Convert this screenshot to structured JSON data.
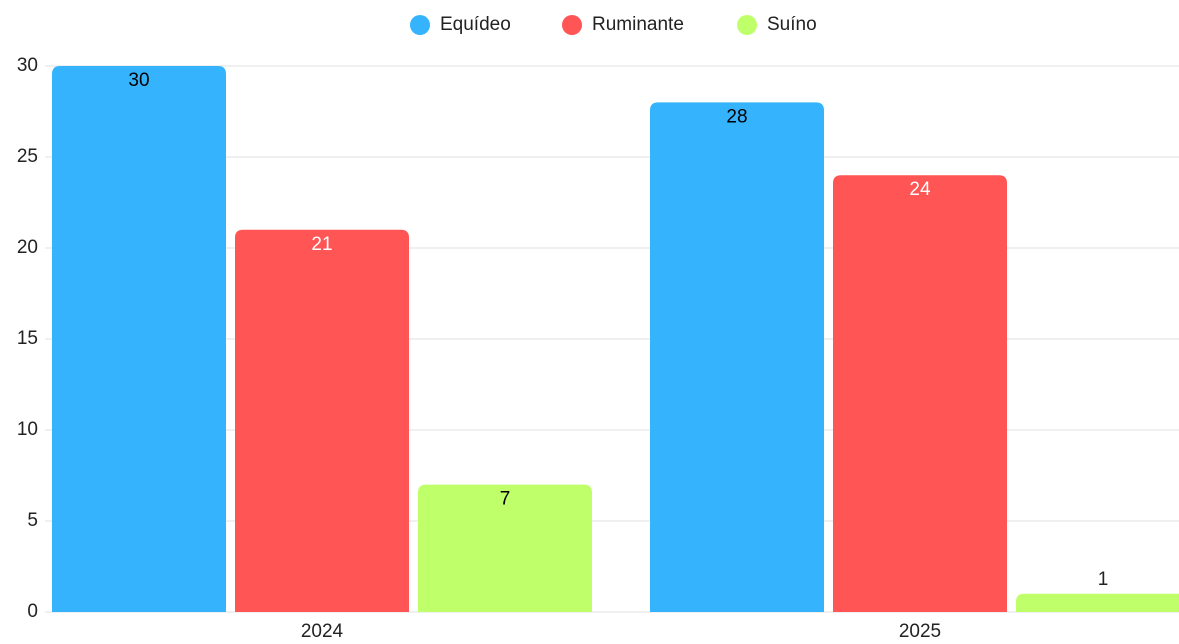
{
  "chart_data": {
    "type": "bar",
    "categories": [
      "2024",
      "2025"
    ],
    "series": [
      {
        "name": "Equídeo",
        "color": "#36b3fd",
        "label_color": "#000000",
        "values": [
          30,
          28
        ]
      },
      {
        "name": "Ruminante",
        "color": "#ff5555",
        "label_color": "#ffffff",
        "values": [
          21,
          24
        ]
      },
      {
        "name": "Suíno",
        "color": "#bfff6a",
        "label_color": "#000000",
        "values": [
          7,
          1
        ]
      }
    ],
    "ylim": [
      0,
      30
    ],
    "yticks": [
      0,
      5,
      10,
      15,
      20,
      25,
      30
    ],
    "grid": true,
    "legend": "top"
  }
}
